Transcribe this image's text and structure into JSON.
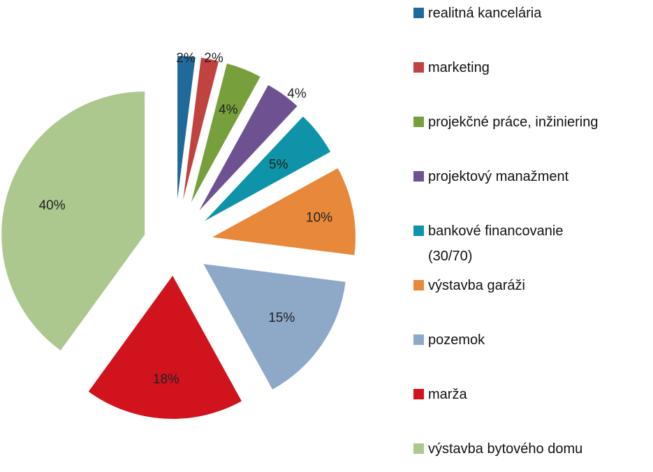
{
  "chart_data": {
    "type": "pie",
    "exploded": true,
    "legend_position": "right",
    "slices": [
      {
        "label": "realitná kancelária",
        "value": 2,
        "display": "2%",
        "color": "#1f6a9a"
      },
      {
        "label": "marketing",
        "value": 2,
        "display": "2%",
        "color": "#c0433f"
      },
      {
        "label": "projekčné práce, inžiniering",
        "value": 4,
        "display": "4%",
        "color": "#77a03c"
      },
      {
        "label": "projektový manažment",
        "value": 4,
        "display": "4%",
        "color": "#6e5190"
      },
      {
        "label": [
          "bankové financovanie",
          "(30/70)"
        ],
        "value": 5,
        "display": "5%",
        "color": "#0e93a8"
      },
      {
        "label": "výstavba garáži",
        "value": 10,
        "display": "10%",
        "color": "#e8883a"
      },
      {
        "label": "pozemok",
        "value": 15,
        "display": "15%",
        "color": "#8ea8c8"
      },
      {
        "label": "marža",
        "value": 18,
        "display": "18%",
        "color": "#d0131d"
      },
      {
        "label": "výstavba bytového domu",
        "value": 40,
        "display": "40%",
        "color": "#acc88e"
      }
    ]
  }
}
